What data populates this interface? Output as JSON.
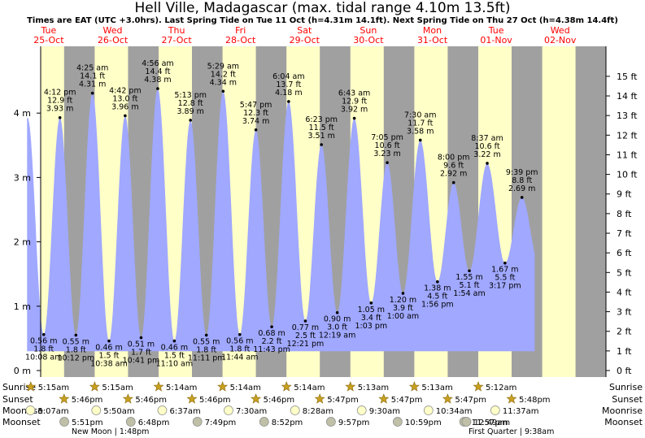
{
  "title": "Hell Ville, Madagascar (max. tidal range 4.10m 13.5ft)",
  "subtitle": "Times are EAT (UTC +3.0hrs). Last Spring Tide on Tue 11 Oct (h=4.31m 14.1ft). Next Spring Tide on Thu 27 Oct (h=4.38m 14.4ft)",
  "colors": {
    "day": "#ffffc8",
    "night": "#a0a0a0",
    "tide": "#a0a8ff",
    "red": "#ff0000",
    "star": "#c8a020",
    "moon": "#ffffc8"
  },
  "days": [
    {
      "dow": "Tue",
      "date": "25-Oct"
    },
    {
      "dow": "Wed",
      "date": "26-Oct"
    },
    {
      "dow": "Thu",
      "date": "27-Oct"
    },
    {
      "dow": "Fri",
      "date": "28-Oct"
    },
    {
      "dow": "Sat",
      "date": "29-Oct"
    },
    {
      "dow": "Sun",
      "date": "30-Oct"
    },
    {
      "dow": "Mon",
      "date": "31-Oct"
    },
    {
      "dow": "Tue",
      "date": "01-Nov"
    },
    {
      "dow": "Wed",
      "date": "02-Nov"
    }
  ],
  "chart_data": {
    "type": "area",
    "unit_left": "m",
    "unit_right": "ft",
    "ylim_m": [
      0,
      4.7
    ],
    "yticks_m": [
      "0 m",
      "1 m",
      "2 m",
      "3 m",
      "4 m"
    ],
    "yticks_ft": [
      "0 ft",
      "1 ft",
      "2 ft",
      "3 ft",
      "4 ft",
      "5 ft",
      "6 ft",
      "7 ft",
      "8 ft",
      "9 ft",
      "10 ft",
      "11 ft",
      "12 ft",
      "13 ft",
      "14 ft",
      "15 ft"
    ],
    "tides": [
      {
        "type": "high",
        "time": "4:12 pm",
        "ft": "12.9 ft",
        "m": "3.93 m",
        "h": 3.93,
        "day": 0,
        "hour": 16.2
      },
      {
        "type": "low",
        "time": "10:08 am",
        "ft": "1.8 ft",
        "m": "0.56 m",
        "h": 0.56,
        "day": 0,
        "hour": 10.13
      },
      {
        "type": "low",
        "time": "10:12 pm",
        "ft": "1.8 ft",
        "m": "0.55 m",
        "h": 0.55,
        "day": 0,
        "hour": 22.2
      },
      {
        "type": "high",
        "time": "4:25 am",
        "ft": "14.1 ft",
        "m": "4.31 m",
        "h": 4.31,
        "day": 1,
        "hour": 4.42
      },
      {
        "type": "low",
        "time": "10:38 am",
        "ft": "1.5 ft",
        "m": "0.46 m",
        "h": 0.46,
        "day": 1,
        "hour": 10.63
      },
      {
        "type": "high",
        "time": "4:42 pm",
        "ft": "13.0 ft",
        "m": "3.96 m",
        "h": 3.96,
        "day": 1,
        "hour": 16.7
      },
      {
        "type": "low",
        "time": "10:41 pm",
        "ft": "1.7 ft",
        "m": "0.51 m",
        "h": 0.51,
        "day": 1,
        "hour": 22.68
      },
      {
        "type": "high",
        "time": "4:56 am",
        "ft": "14.4 ft",
        "m": "4.38 m",
        "h": 4.38,
        "day": 2,
        "hour": 4.93
      },
      {
        "type": "low",
        "time": "11:10 am",
        "ft": "1.5 ft",
        "m": "0.46 m",
        "h": 0.46,
        "day": 2,
        "hour": 11.17
      },
      {
        "type": "high",
        "time": "5:13 pm",
        "ft": "12.8 ft",
        "m": "3.89 m",
        "h": 3.89,
        "day": 2,
        "hour": 17.22
      },
      {
        "type": "low",
        "time": "11:11 pm",
        "ft": "1.8 ft",
        "m": "0.55 m",
        "h": 0.55,
        "day": 2,
        "hour": 23.18
      },
      {
        "type": "high",
        "time": "5:29 am",
        "ft": "14.2 ft",
        "m": "4.34 m",
        "h": 4.34,
        "day": 3,
        "hour": 5.48
      },
      {
        "type": "low",
        "time": "11:44 am",
        "ft": "1.8 ft",
        "m": "0.56 m",
        "h": 0.56,
        "day": 3,
        "hour": 11.73
      },
      {
        "type": "high",
        "time": "5:47 pm",
        "ft": "12.3 ft",
        "m": "3.74 m",
        "h": 3.74,
        "day": 3,
        "hour": 17.78
      },
      {
        "type": "low",
        "time": "11:43 pm",
        "ft": "2.2 ft",
        "m": "0.68 m",
        "h": 0.68,
        "day": 3,
        "hour": 23.72
      },
      {
        "type": "high",
        "time": "6:04 am",
        "ft": "13.7 ft",
        "m": "4.18 m",
        "h": 4.18,
        "day": 4,
        "hour": 6.07
      },
      {
        "type": "low",
        "time": "12:21 pm",
        "ft": "2.5 ft",
        "m": "0.77 m",
        "h": 0.77,
        "day": 4,
        "hour": 12.35
      },
      {
        "type": "high",
        "time": "6:23 pm",
        "ft": "11.5 ft",
        "m": "3.51 m",
        "h": 3.51,
        "day": 4,
        "hour": 18.38
      },
      {
        "type": "low",
        "time": "12:19 am",
        "ft": "3.0 ft",
        "m": "0.90 m",
        "h": 0.9,
        "day": 5,
        "hour": 0.32
      },
      {
        "type": "high",
        "time": "6:43 am",
        "ft": "12.9 ft",
        "m": "3.92 m",
        "h": 3.92,
        "day": 5,
        "hour": 6.72
      },
      {
        "type": "low",
        "time": "1:03 pm",
        "ft": "3.4 ft",
        "m": "1.05 m",
        "h": 1.05,
        "day": 5,
        "hour": 13.05
      },
      {
        "type": "high",
        "time": "7:05 pm",
        "ft": "10.6 ft",
        "m": "3.23 m",
        "h": 3.23,
        "day": 5,
        "hour": 19.08
      },
      {
        "type": "low",
        "time": "1:00 am",
        "ft": "3.9 ft",
        "m": "1.20 m",
        "h": 1.2,
        "day": 6,
        "hour": 1.0
      },
      {
        "type": "high",
        "time": "7:30 am",
        "ft": "11.7 ft",
        "m": "3.58 m",
        "h": 3.58,
        "day": 6,
        "hour": 7.5
      },
      {
        "type": "low",
        "time": "1:56 pm",
        "ft": "4.5 ft",
        "m": "1.38 m",
        "h": 1.38,
        "day": 6,
        "hour": 13.93
      },
      {
        "type": "high",
        "time": "8:00 pm",
        "ft": "9.6 ft",
        "m": "2.92 m",
        "h": 2.92,
        "day": 6,
        "hour": 20.0
      },
      {
        "type": "low",
        "time": "1:54 am",
        "ft": "5.1 ft",
        "m": "1.55 m",
        "h": 1.55,
        "day": 7,
        "hour": 1.9
      },
      {
        "type": "high",
        "time": "8:37 am",
        "ft": "10.6 ft",
        "m": "3.22 m",
        "h": 3.22,
        "day": 7,
        "hour": 8.62
      },
      {
        "type": "low",
        "time": "3:17 pm",
        "ft": "5.5 ft",
        "m": "1.67 m",
        "h": 1.67,
        "day": 7,
        "hour": 15.28
      },
      {
        "type": "high",
        "time": "9:39 pm",
        "ft": "8.8 ft",
        "m": "2.69 m",
        "h": 2.69,
        "day": 7,
        "hour": 21.65
      }
    ]
  },
  "rows": {
    "sunrise": {
      "label": "Sunrise",
      "times": [
        "5:15am",
        "5:15am",
        "5:14am",
        "5:14am",
        "5:14am",
        "5:13am",
        "5:13am",
        "5:12am"
      ]
    },
    "sunset": {
      "label": "Sunset",
      "times": [
        "5:46pm",
        "5:46pm",
        "5:46pm",
        "5:46pm",
        "5:47pm",
        "5:47pm",
        "5:47pm",
        "5:48pm"
      ]
    },
    "moonrise": {
      "label": "Moonrise",
      "times": [
        "5:07am",
        "5:50am",
        "6:37am",
        "7:30am",
        "8:28am",
        "9:30am",
        "10:34am",
        "11:37am"
      ]
    },
    "moonset": {
      "label": "Moonset",
      "times": [
        "5:51pm",
        "6:48pm",
        "7:49pm",
        "8:52pm",
        "9:57pm",
        "10:59pm",
        "11:57pm",
        "12:49am"
      ]
    }
  },
  "moon_phases": [
    {
      "text": "New Moon | 1:48pm"
    },
    {
      "text": "First Quarter | 9:38am"
    }
  ]
}
